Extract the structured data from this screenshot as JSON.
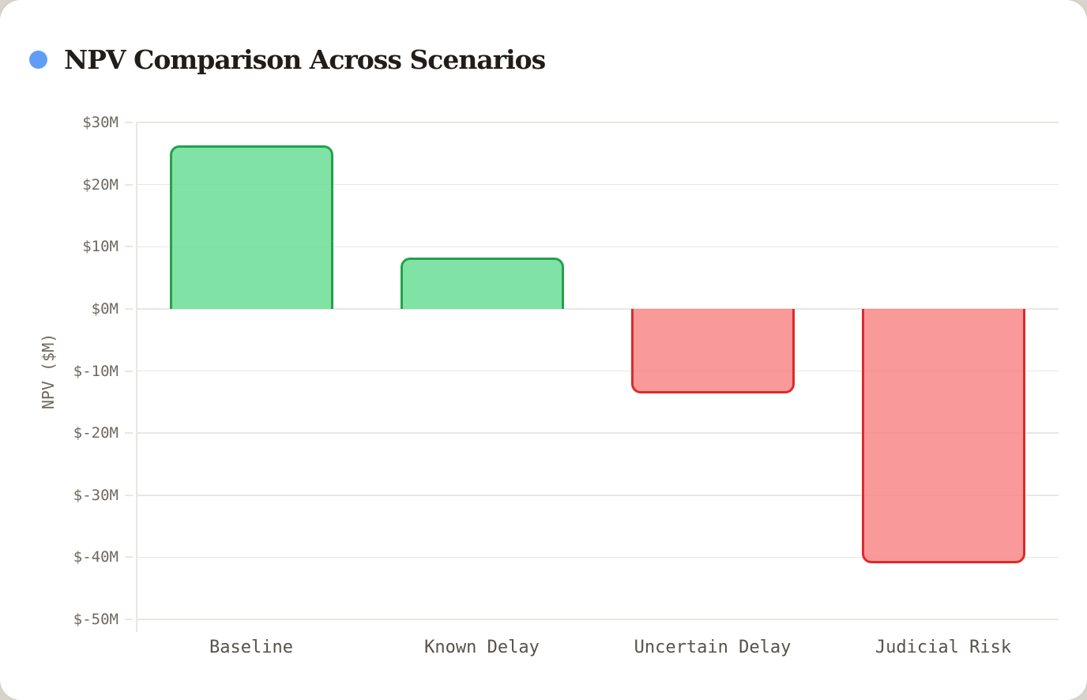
{
  "page": {
    "background_color": "#d9d4cb",
    "card_background_color": "#ffffff"
  },
  "header": {
    "title": "NPV Comparison Across Scenarios",
    "bullet_color": "#5f9ef4",
    "title_color": "#211d1a"
  },
  "chart_data": {
    "type": "bar",
    "title": "NPV Comparison Across Scenarios",
    "categories": [
      "Baseline",
      "Known Delay",
      "Uncertain Delay",
      "Judicial Risk"
    ],
    "values": [
      26.3,
      8.2,
      -13.6,
      -41.0
    ],
    "xlabel": "",
    "ylabel": "NPV ($M)",
    "ylim": [
      -50,
      30
    ],
    "yticks": [
      30,
      20,
      10,
      0,
      -10,
      -20,
      -30,
      -40,
      -50
    ],
    "ytick_labels": [
      "$30M",
      "$20M",
      "$10M",
      "$0M",
      "$-10M",
      "$-20M",
      "$-30M",
      "$-40M",
      "$-50M"
    ],
    "grid": true,
    "legend": false,
    "colors": {
      "positive_fill": "#60dc8e",
      "positive_border": "#22a24c",
      "negative_fill": "#f78080",
      "negative_border": "#dc2b2b",
      "fill_opacity": 0.8,
      "gridline": "#e9e7e3",
      "y_tick_text": "#6e6961",
      "x_tick_text": "#57524c"
    }
  }
}
